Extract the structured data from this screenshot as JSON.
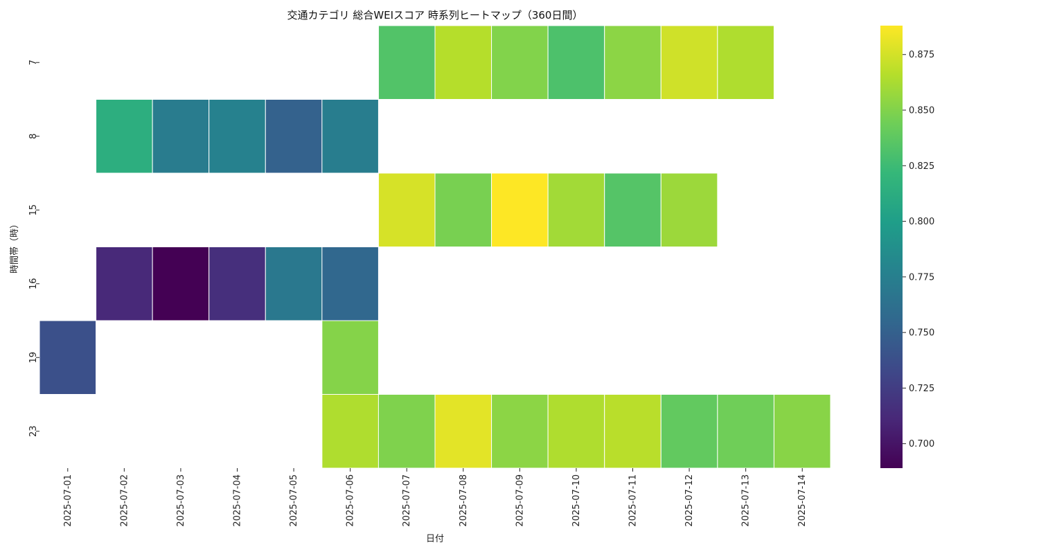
{
  "chart_data": {
    "type": "heatmap",
    "title": "交通カテゴリ 総合WEIスコア 時系列ヒートマップ（360日間）",
    "xlabel": "日付",
    "ylabel": "時間帯（時）",
    "x": [
      "2025-07-01",
      "2025-07-02",
      "2025-07-03",
      "2025-07-04",
      "2025-07-05",
      "2025-07-06",
      "2025-07-07",
      "2025-07-08",
      "2025-07-09",
      "2025-07-10",
      "2025-07-11",
      "2025-07-12",
      "2025-07-13",
      "2025-07-14"
    ],
    "y": [
      "7",
      "8",
      "15",
      "16",
      "19",
      "23"
    ],
    "values": [
      [
        null,
        null,
        null,
        null,
        null,
        null,
        0.833,
        0.866,
        0.85,
        0.831,
        0.853,
        0.874,
        0.864,
        null
      ],
      [
        null,
        0.814,
        0.772,
        0.777,
        0.751,
        0.773,
        null,
        null,
        null,
        null,
        null,
        null,
        null,
        null
      ],
      [
        null,
        null,
        null,
        null,
        null,
        null,
        0.876,
        0.847,
        0.888,
        0.86,
        0.834,
        0.858,
        null,
        null
      ],
      [
        null,
        0.712,
        0.689,
        0.716,
        0.769,
        0.755,
        null,
        null,
        null,
        null,
        null,
        null,
        null,
        null
      ],
      [
        0.738,
        null,
        null,
        null,
        null,
        0.851,
        null,
        null,
        null,
        null,
        null,
        null,
        null,
        null
      ],
      [
        null,
        null,
        null,
        null,
        null,
        0.864,
        0.849,
        0.88,
        0.853,
        0.864,
        0.867,
        0.839,
        0.844,
        0.852
      ]
    ],
    "colorbar": {
      "colormap": "viridis",
      "vmin": 0.689,
      "vmax": 0.888,
      "ticks": [
        "0.700",
        "0.725",
        "0.750",
        "0.775",
        "0.800",
        "0.825",
        "0.850",
        "0.875"
      ]
    },
    "grid": false,
    "legend": "colorbar-right"
  }
}
